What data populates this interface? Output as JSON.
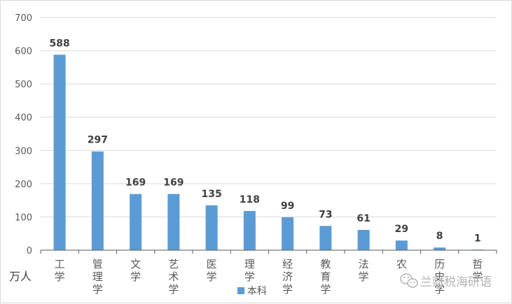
{
  "chart_data": {
    "type": "bar",
    "categories": [
      "工学",
      "管理学",
      "文学",
      "艺术学",
      "医学",
      "理学",
      "经济学",
      "教育学",
      "法学",
      "农学",
      "历史学",
      "哲学"
    ],
    "categories_display": [
      "工学",
      "管理学",
      "文学",
      "艺术学",
      "医学",
      "理学",
      "经济学",
      "教育学",
      "法学",
      "农",
      "历史学",
      "哲学"
    ],
    "series": [
      {
        "name": "本科",
        "values": [
          588,
          297,
          169,
          169,
          135,
          118,
          99,
          73,
          61,
          29,
          8,
          1
        ],
        "color": "#5b9bd5"
      }
    ],
    "ylabel": "万人",
    "ylim": [
      0,
      700
    ],
    "yticks": [
      0,
      100,
      200,
      300,
      400,
      500,
      600,
      700
    ],
    "grid": true,
    "legend": "bottom"
  },
  "watermark": {
    "text": "兰财税海研语",
    "icon": "wechat-icon"
  }
}
